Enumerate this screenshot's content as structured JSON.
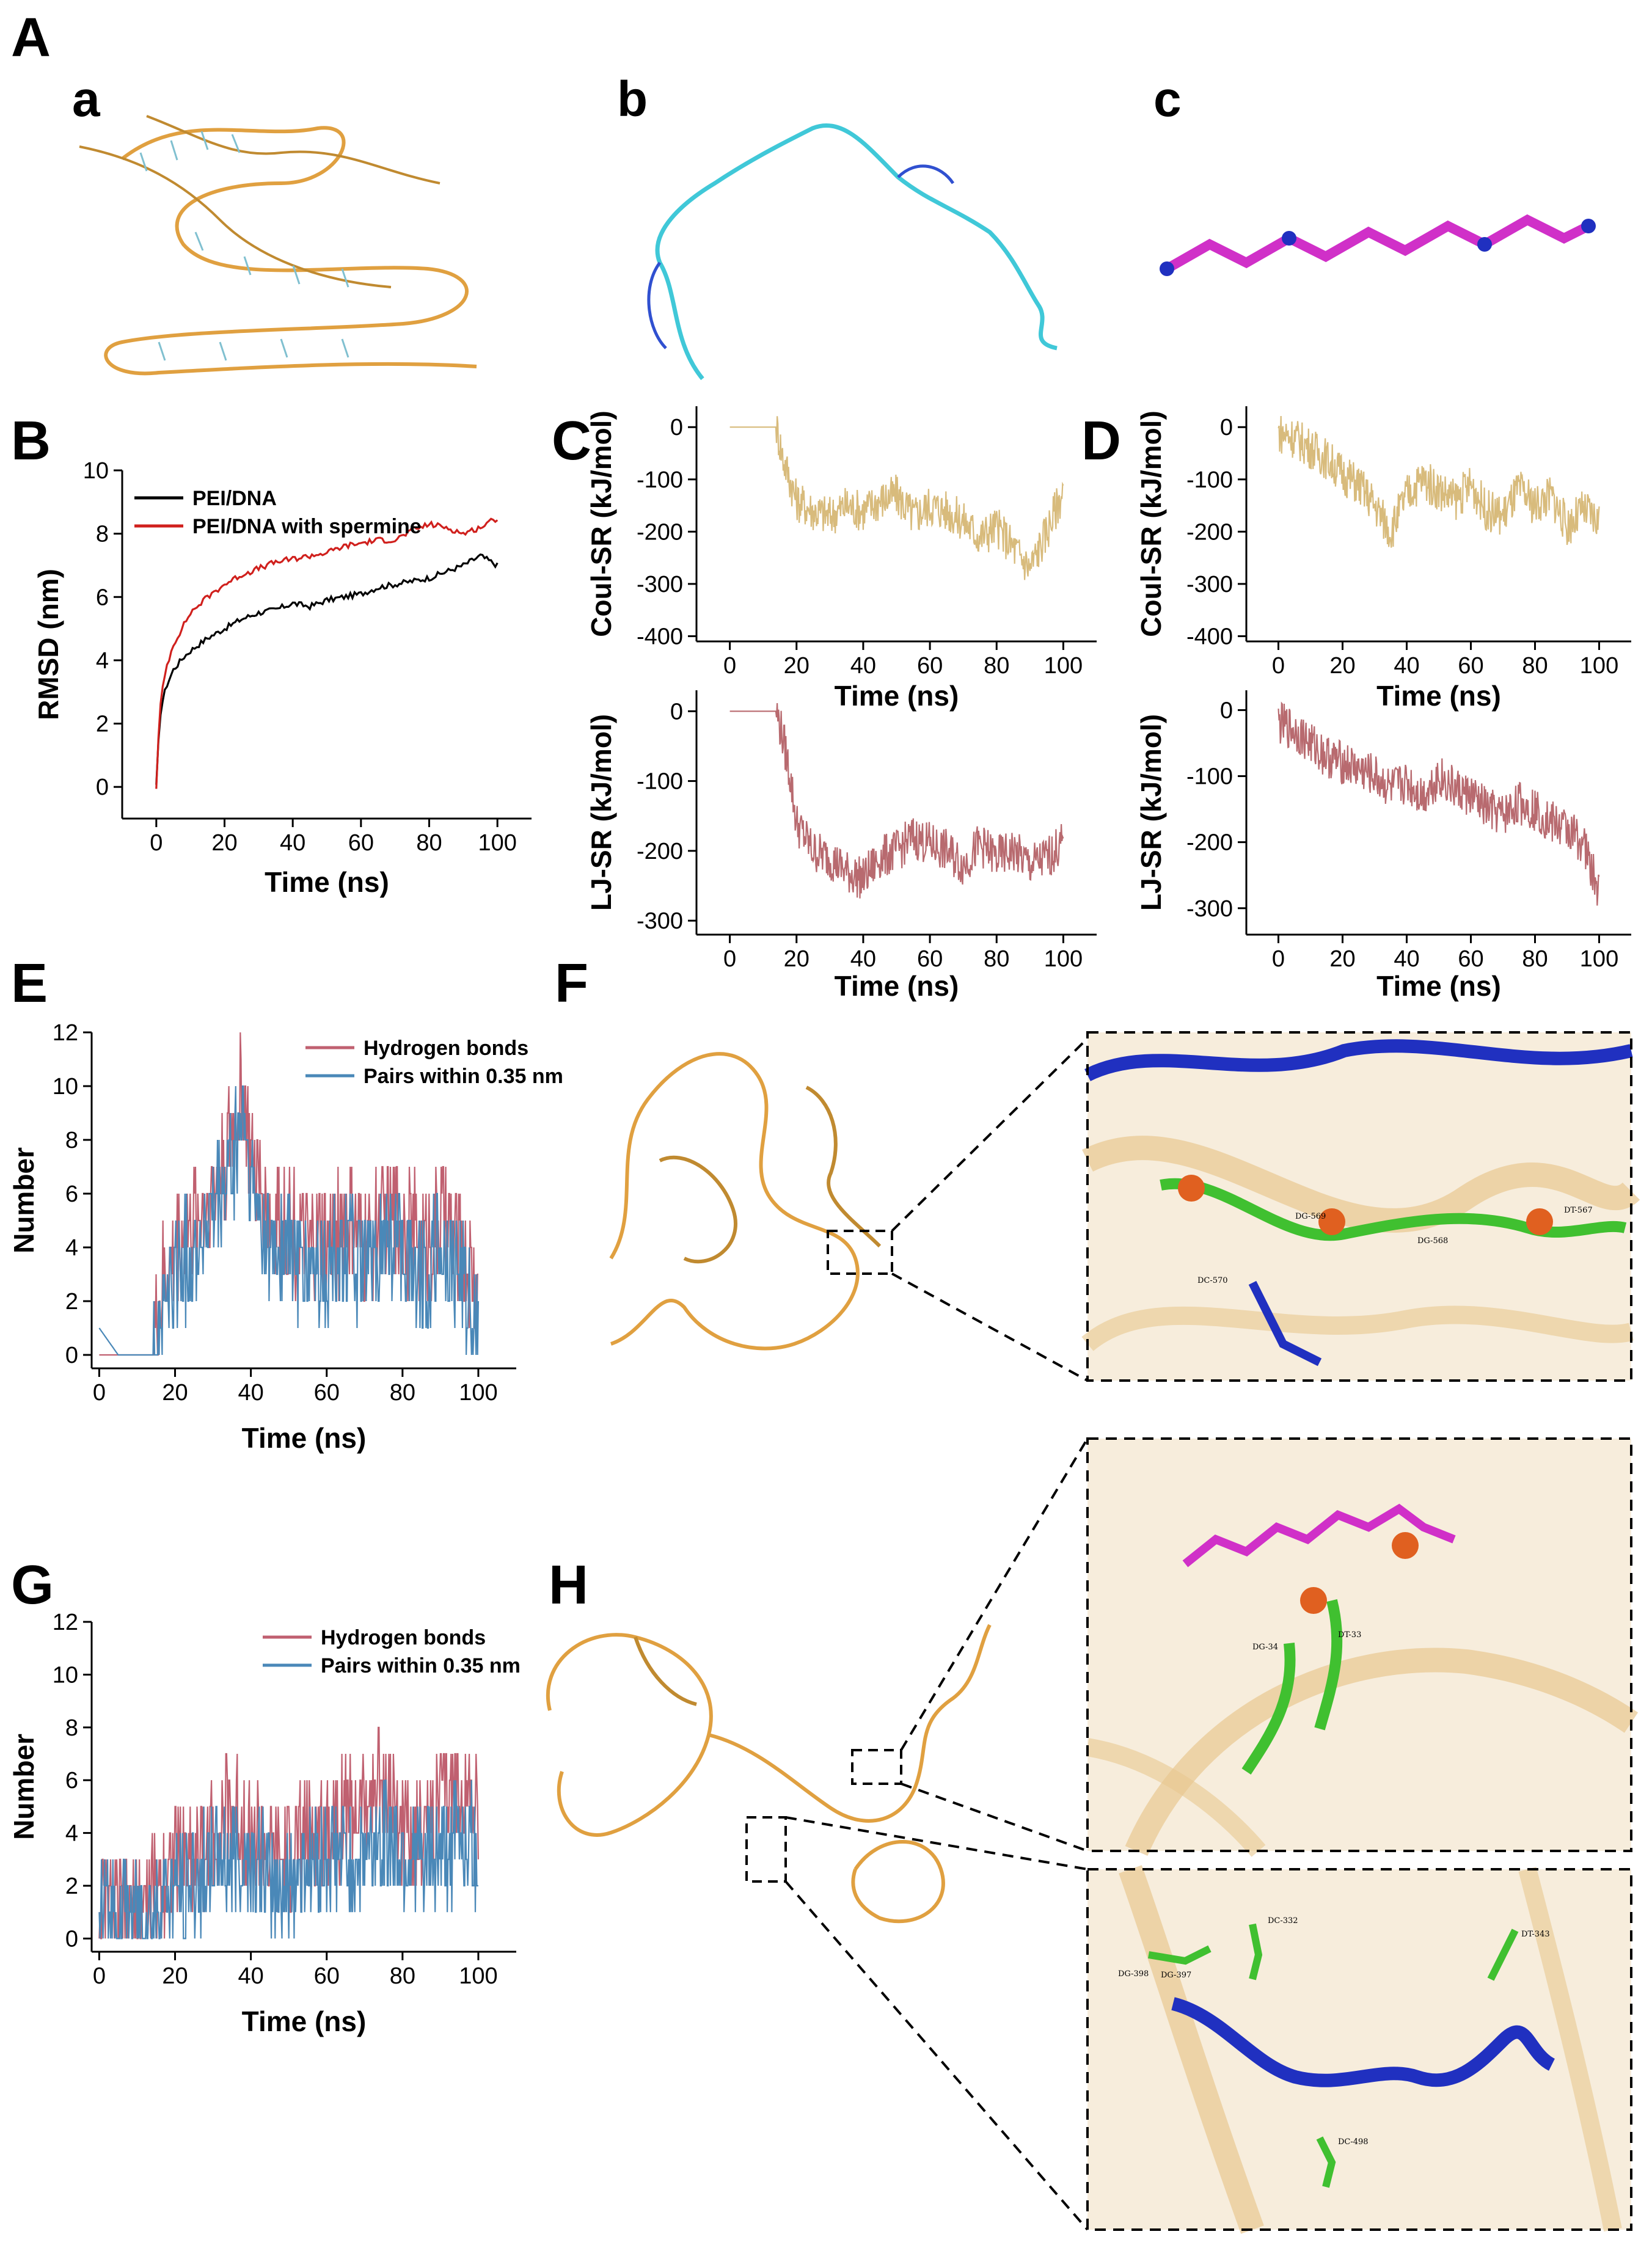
{
  "colors": {
    "pei_dna": "#000000",
    "pei_dna_spermine": "#d0201d",
    "coul": "#d8bb7c",
    "lj": "#b86a6f",
    "hbond": "#c06070",
    "pairs": "#4a88b8",
    "dna_backbone": "#e0a040",
    "pei_blue": "#2030c0",
    "spermine_magenta": "#d030c8",
    "carbon_green": "#40c030"
  },
  "panel_letters": {
    "A": "A",
    "a": "a",
    "b": "b",
    "c": "c",
    "B": "B",
    "C": "C",
    "D": "D",
    "E": "E",
    "F": "F",
    "G": "G",
    "H": "H"
  },
  "residue_labels": {
    "F": [
      "DC-570",
      "DG-569",
      "DG-568",
      "DT-567"
    ],
    "H_top": [
      "DT-33",
      "DG-34"
    ],
    "H_bottom": [
      "DG-398",
      "DG-397",
      "DC-332",
      "DT-343",
      "DC-498"
    ]
  },
  "chart_data": [
    {
      "id": "B",
      "type": "line",
      "xlabel": "Time (ns)",
      "ylabel": "RMSD (nm)",
      "xlim": [
        -10,
        110
      ],
      "ylim": [
        -1,
        10
      ],
      "xticks": [
        0,
        20,
        40,
        60,
        80,
        100
      ],
      "yticks": [
        0,
        2,
        4,
        6,
        8,
        10
      ],
      "legend": "top-left",
      "series": [
        {
          "name": "PEI/DNA",
          "color": "#000000",
          "x": [
            0,
            1,
            2,
            3,
            5,
            8,
            10,
            15,
            20,
            25,
            30,
            35,
            40,
            45,
            50,
            55,
            60,
            65,
            70,
            75,
            80,
            85,
            90,
            95,
            100
          ],
          "y": [
            0,
            2.2,
            2.8,
            3.2,
            3.7,
            4.1,
            4.3,
            4.7,
            5.0,
            5.3,
            5.5,
            5.6,
            5.8,
            5.7,
            5.9,
            6.0,
            6.1,
            6.3,
            6.4,
            6.5,
            6.6,
            6.8,
            7.0,
            7.3,
            7.0
          ]
        },
        {
          "name": "PEI/DNA with spermine",
          "color": "#d0201d",
          "x": [
            0,
            1,
            2,
            3,
            5,
            8,
            10,
            15,
            20,
            25,
            30,
            35,
            40,
            45,
            50,
            55,
            60,
            65,
            70,
            75,
            80,
            85,
            90,
            95,
            100
          ],
          "y": [
            0,
            2.4,
            3.2,
            3.8,
            4.5,
            5.1,
            5.5,
            6.0,
            6.4,
            6.7,
            6.9,
            7.1,
            7.2,
            7.3,
            7.4,
            7.6,
            7.7,
            7.8,
            7.8,
            8.1,
            8.3,
            8.2,
            8.0,
            8.2,
            8.5
          ]
        }
      ]
    },
    {
      "id": "C_top",
      "type": "line",
      "xlabel": "Time (ns)",
      "ylabel": "Coul-SR (kJ/mol)",
      "xlim": [
        -10,
        110
      ],
      "ylim": [
        -410,
        40
      ],
      "xticks": [
        0,
        20,
        40,
        60,
        80,
        100
      ],
      "yticks": [
        0,
        -100,
        -200,
        -300,
        -400
      ],
      "series": [
        {
          "color": "#d8bb7c",
          "x": [
            0,
            5,
            10,
            14,
            16,
            20,
            25,
            30,
            35,
            40,
            45,
            50,
            55,
            60,
            65,
            70,
            75,
            80,
            85,
            90,
            95,
            100
          ],
          "y": [
            0,
            0,
            0,
            0,
            -60,
            -140,
            -160,
            -170,
            -150,
            -160,
            -140,
            -130,
            -170,
            -150,
            -160,
            -180,
            -210,
            -190,
            -230,
            -270,
            -200,
            -120
          ]
        }
      ]
    },
    {
      "id": "C_bottom",
      "type": "line",
      "xlabel": "Time (ns)",
      "ylabel": "LJ-SR (kJ/mol)",
      "xlim": [
        -10,
        110
      ],
      "ylim": [
        -320,
        30
      ],
      "xticks": [
        0,
        20,
        40,
        60,
        80,
        100
      ],
      "yticks": [
        0,
        -100,
        -200,
        -300
      ],
      "series": [
        {
          "color": "#b86a6f",
          "x": [
            0,
            5,
            10,
            14,
            16,
            18,
            20,
            25,
            30,
            35,
            40,
            45,
            50,
            55,
            60,
            65,
            70,
            75,
            80,
            85,
            90,
            95,
            100
          ],
          "y": [
            0,
            0,
            0,
            0,
            -40,
            -90,
            -160,
            -200,
            -210,
            -230,
            -240,
            -210,
            -200,
            -180,
            -190,
            -200,
            -220,
            -190,
            -210,
            -200,
            -220,
            -210,
            -190
          ]
        }
      ]
    },
    {
      "id": "D_top",
      "type": "line",
      "xlabel": "Time (ns)",
      "ylabel": "Coul-SR (kJ/mol)",
      "xlim": [
        -10,
        110
      ],
      "ylim": [
        -410,
        40
      ],
      "xticks": [
        0,
        20,
        40,
        60,
        80,
        100
      ],
      "yticks": [
        0,
        -100,
        -200,
        -300,
        -400
      ],
      "series": [
        {
          "color": "#d8bb7c",
          "x": [
            0,
            5,
            10,
            15,
            20,
            25,
            30,
            35,
            40,
            45,
            50,
            55,
            60,
            65,
            70,
            75,
            80,
            85,
            90,
            95,
            100
          ],
          "y": [
            -10,
            -20,
            -40,
            -60,
            -90,
            -110,
            -150,
            -200,
            -130,
            -100,
            -120,
            -140,
            -110,
            -160,
            -170,
            -120,
            -150,
            -130,
            -190,
            -160,
            -180
          ]
        }
      ]
    },
    {
      "id": "D_bottom",
      "type": "line",
      "xlabel": "Time (ns)",
      "ylabel": "LJ-SR (kJ/mol)",
      "xlim": [
        -10,
        110
      ],
      "ylim": [
        -340,
        30
      ],
      "xticks": [
        0,
        20,
        40,
        60,
        80,
        100
      ],
      "yticks": [
        0,
        -100,
        -200,
        -300
      ],
      "series": [
        {
          "color": "#b86a6f",
          "x": [
            0,
            5,
            10,
            15,
            20,
            25,
            30,
            35,
            40,
            45,
            50,
            55,
            60,
            65,
            70,
            75,
            80,
            85,
            90,
            95,
            100
          ],
          "y": [
            -20,
            -30,
            -50,
            -70,
            -80,
            -90,
            -100,
            -120,
            -110,
            -130,
            -100,
            -120,
            -130,
            -150,
            -160,
            -140,
            -150,
            -170,
            -180,
            -200,
            -280
          ]
        }
      ]
    },
    {
      "id": "E",
      "type": "line",
      "xlabel": "Time (ns)",
      "ylabel": "Number",
      "xlim": [
        -2,
        110
      ],
      "ylim": [
        -0.5,
        12
      ],
      "xticks": [
        0,
        20,
        40,
        60,
        80,
        100
      ],
      "yticks": [
        0,
        2,
        4,
        6,
        8,
        10,
        12
      ],
      "legend": "top-right",
      "series": [
        {
          "name": "Hydrogen bonds",
          "color": "#c06070",
          "x": [
            0,
            5,
            10,
            14,
            16,
            20,
            25,
            30,
            35,
            38,
            40,
            45,
            50,
            55,
            60,
            65,
            70,
            75,
            80,
            85,
            90,
            95,
            100
          ],
          "y": [
            0,
            0,
            0,
            0,
            2,
            4,
            5,
            6,
            8,
            10,
            7,
            5,
            5,
            4,
            4,
            5,
            4,
            5,
            5,
            4,
            5,
            4,
            2
          ]
        },
        {
          "name": "Pairs within 0.35 nm",
          "color": "#4a88b8",
          "x": [
            0,
            5,
            10,
            14,
            16,
            20,
            25,
            30,
            35,
            38,
            40,
            45,
            50,
            55,
            60,
            65,
            70,
            75,
            80,
            85,
            90,
            95,
            100
          ],
          "y": [
            1,
            0,
            0,
            0,
            1,
            3,
            4,
            5,
            7,
            9,
            6,
            4,
            4,
            3,
            3,
            4,
            3,
            4,
            4,
            3,
            4,
            3,
            1
          ]
        }
      ]
    },
    {
      "id": "G",
      "type": "line",
      "xlabel": "Time (ns)",
      "ylabel": "Number",
      "xlim": [
        -2,
        110
      ],
      "ylim": [
        -0.5,
        12
      ],
      "xticks": [
        0,
        20,
        40,
        60,
        80,
        100
      ],
      "yticks": [
        0,
        2,
        4,
        6,
        8,
        10,
        12
      ],
      "legend": "top-right",
      "series": [
        {
          "name": "Hydrogen bonds",
          "color": "#c06070",
          "x": [
            0,
            5,
            10,
            15,
            20,
            25,
            30,
            35,
            40,
            45,
            50,
            55,
            60,
            65,
            70,
            75,
            80,
            85,
            90,
            95,
            100
          ],
          "y": [
            1,
            1,
            1,
            2,
            3,
            3,
            4,
            5,
            4,
            3,
            3,
            4,
            4,
            5,
            5,
            6,
            4,
            4,
            5,
            6,
            5
          ]
        },
        {
          "name": "Pairs within 0.35 nm",
          "color": "#4a88b8",
          "x": [
            0,
            5,
            10,
            15,
            20,
            25,
            30,
            35,
            40,
            45,
            50,
            55,
            60,
            65,
            70,
            75,
            80,
            85,
            90,
            95,
            100
          ],
          "y": [
            1,
            1,
            1,
            1,
            2,
            2,
            3,
            3,
            3,
            2,
            2,
            3,
            3,
            3,
            3,
            4,
            3,
            3,
            3,
            4,
            3
          ]
        }
      ]
    }
  ]
}
